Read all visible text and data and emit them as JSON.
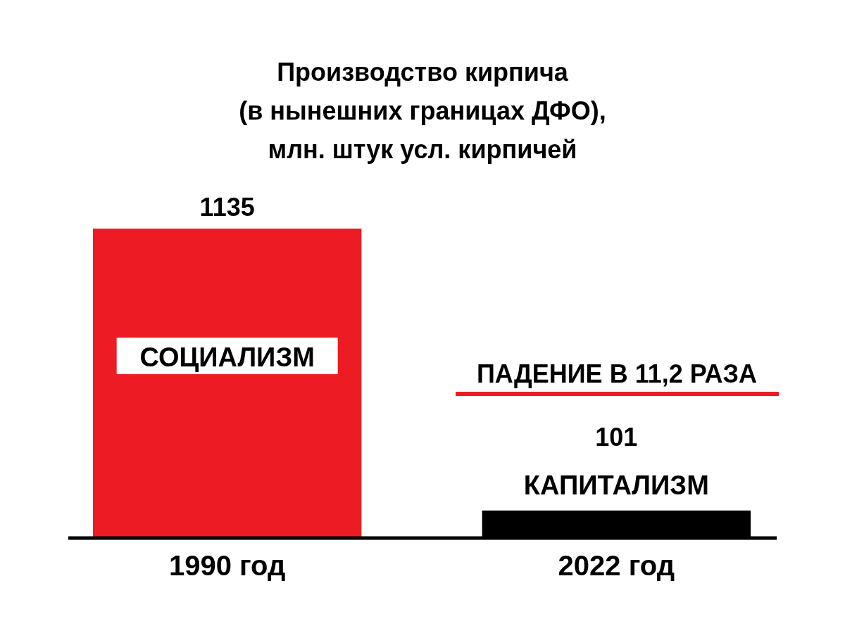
{
  "chart_data": {
    "type": "bar",
    "title": "Производство кирпича\n(в нынешних границах ДФО),\nмлн. штук усл. кирпичей",
    "categories": [
      "1990 год",
      "2022 год"
    ],
    "values": [
      1135,
      101
    ],
    "colors": [
      "#ed1c24",
      "#000000"
    ],
    "data_labels": true,
    "annotations": [
      "СОЦИАЛИЗМ",
      "КАПИТАЛИЗМ",
      "ПАДЕНИЕ В 11,2 РАЗА"
    ]
  }
}
